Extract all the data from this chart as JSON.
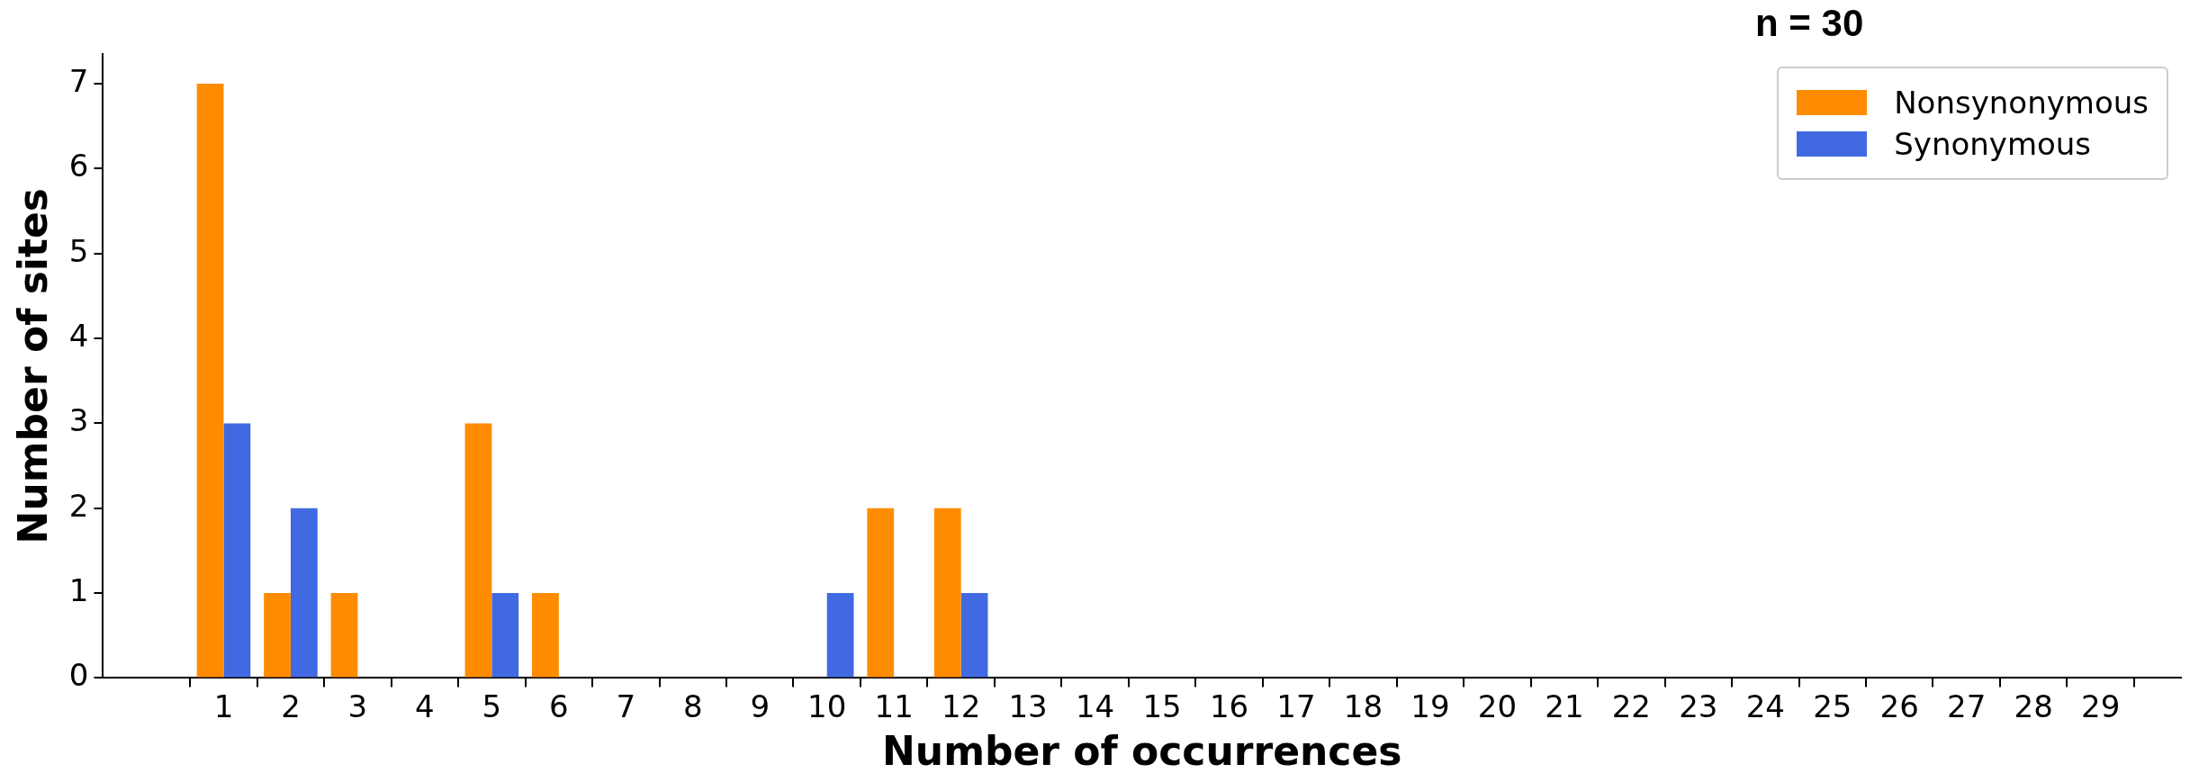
{
  "chart_data": {
    "type": "bar",
    "title": "n = 30",
    "xlabel": "Number of occurrences",
    "ylabel": "Number of sites",
    "x": [
      1,
      2,
      3,
      4,
      5,
      6,
      7,
      8,
      9,
      10,
      11,
      12,
      13,
      14,
      15,
      16,
      17,
      18,
      19,
      20,
      21,
      22,
      23,
      24,
      25,
      26,
      27,
      28,
      29
    ],
    "series": [
      {
        "name": "Nonsynonymous",
        "color": "#ff8c00",
        "values": [
          7,
          1,
          1,
          0,
          3,
          1,
          0,
          0,
          0,
          0,
          2,
          2,
          0,
          0,
          0,
          0,
          0,
          0,
          0,
          0,
          0,
          0,
          0,
          0,
          0,
          0,
          0,
          0,
          0
        ]
      },
      {
        "name": "Synonymous",
        "color": "#4169e1",
        "values": [
          3,
          2,
          0,
          0,
          1,
          0,
          0,
          0,
          0,
          1,
          0,
          1,
          0,
          0,
          0,
          0,
          0,
          0,
          0,
          0,
          0,
          0,
          0,
          0,
          0,
          0,
          0,
          0,
          0
        ]
      }
    ],
    "xlim": [
      -0.8,
      30.2
    ],
    "xticks": [
      1,
      2,
      3,
      4,
      5,
      6,
      7,
      8,
      9,
      10,
      11,
      12,
      13,
      14,
      15,
      16,
      17,
      18,
      19,
      20,
      21,
      22,
      23,
      24,
      25,
      26,
      27,
      28,
      29
    ],
    "ylim": [
      0,
      7.35
    ],
    "yticks": [
      0,
      1,
      2,
      3,
      4,
      5,
      6,
      7
    ],
    "grid": false,
    "legend": "top right"
  }
}
